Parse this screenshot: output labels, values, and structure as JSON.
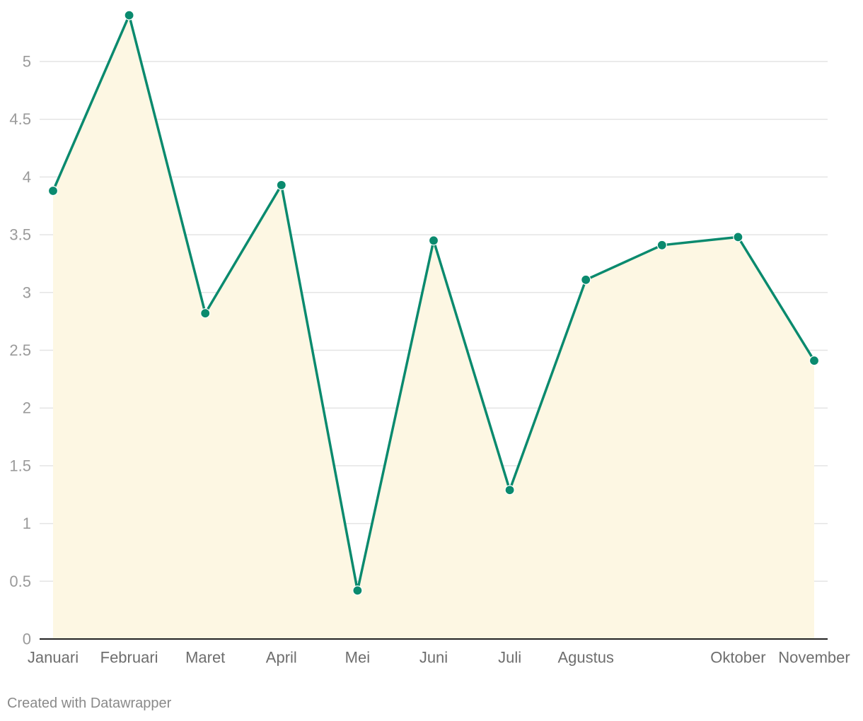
{
  "chart_data": {
    "type": "line",
    "area_fill": true,
    "categories": [
      "Januari",
      "Februari",
      "Maret",
      "April",
      "Mei",
      "Juni",
      "Juli",
      "Agustus",
      "",
      "Oktober",
      "November"
    ],
    "series": [
      {
        "values": [
          3.88,
          5.4,
          2.82,
          3.93,
          0.42,
          3.45,
          1.29,
          3.11,
          3.41,
          3.48,
          2.41
        ]
      }
    ],
    "y_ticks": [
      "0",
      "0.5",
      "1",
      "1.5",
      "2",
      "2.5",
      "3",
      "3.5",
      "4",
      "4.5",
      "5"
    ],
    "ylim": [
      0,
      5.5
    ],
    "grid": true,
    "colors": {
      "line": "#0a8a6e",
      "area": "#fdf7e3",
      "grid": "#e4e4e4",
      "baseline": "#222222"
    }
  },
  "footer": {
    "credit": "Created with Datawrapper"
  }
}
